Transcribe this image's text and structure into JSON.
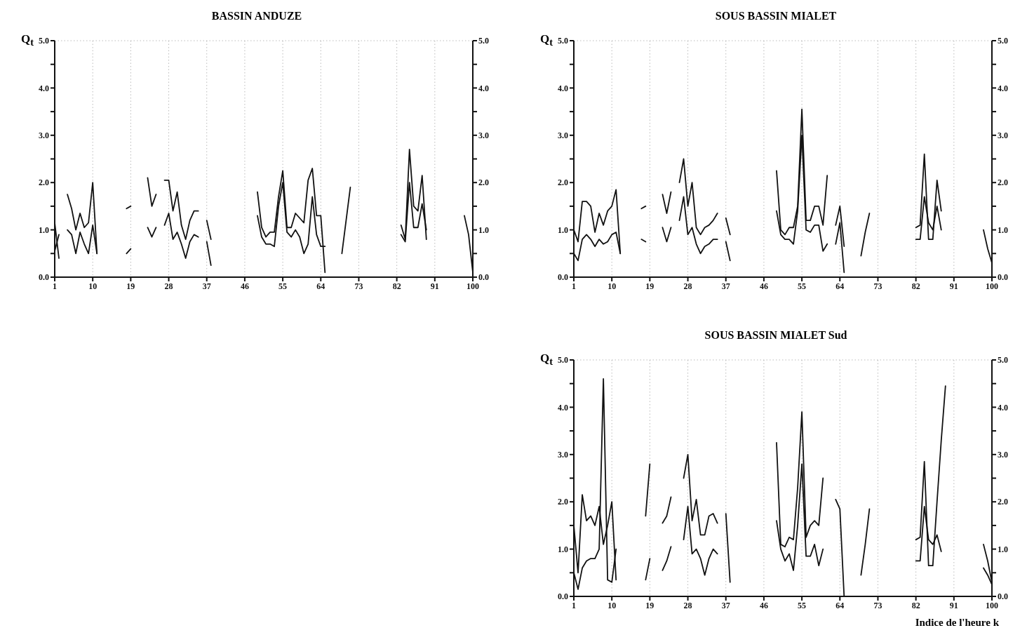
{
  "chart_data": [
    {
      "type": "line",
      "title": "BASSIN ANDUZE",
      "ylabel": "Q$_{t}$",
      "line_style": "solid",
      "marker": "none",
      "grid": true,
      "xlim": [
        1,
        100
      ],
      "xticks": [
        1,
        10,
        19,
        28,
        37,
        46,
        55,
        64,
        73,
        82,
        91,
        100
      ],
      "ylim": [
        0,
        5
      ],
      "yticks": [
        {
          "value": 0,
          "label": "0.0"
        },
        {
          "value": 0.5,
          "label": null
        },
        {
          "value": 1,
          "label": "1.0"
        },
        {
          "value": 1.5,
          "label": null
        },
        {
          "value": 2,
          "label": "2.0"
        },
        {
          "value": 2.5,
          "label": null
        },
        {
          "value": 3,
          "label": "3.0"
        },
        {
          "value": 3.5,
          "label": null
        },
        {
          "value": 4,
          "label": "4.0"
        },
        {
          "value": 4.5,
          "label": null
        },
        {
          "value": 5,
          "label": "5.0"
        }
      ],
      "y2lim": [
        0,
        5
      ],
      "y2ticks": [
        {
          "value": 0,
          "label": "0.0"
        },
        {
          "value": 0.5,
          "label": null
        },
        {
          "value": 1,
          "label": "1.0"
        },
        {
          "value": 1.5,
          "label": null
        },
        {
          "value": 2,
          "label": "2.0"
        },
        {
          "value": 2.5,
          "label": null
        },
        {
          "value": 3,
          "label": "3.0"
        },
        {
          "value": 3.5,
          "label": null
        },
        {
          "value": 4,
          "label": "4.0"
        },
        {
          "value": 4.5,
          "label": null
        },
        {
          "value": 5,
          "label": "5.0"
        }
      ],
      "x": [
        1,
        2,
        3,
        4,
        5,
        6,
        7,
        8,
        9,
        10,
        11,
        15,
        18,
        19,
        21,
        23,
        24,
        25,
        26,
        27,
        28,
        29,
        30,
        31,
        32,
        33,
        34,
        35,
        36,
        37,
        38,
        45,
        49,
        50,
        51,
        52,
        53,
        54,
        55,
        56,
        57,
        58,
        59,
        60,
        61,
        62,
        63,
        64,
        65,
        67,
        69,
        70,
        71,
        80,
        83,
        84,
        85,
        86,
        87,
        88,
        89,
        95,
        98,
        99,
        100
      ],
      "series": [
        {
          "color": "#111111",
          "values": [
            1.15,
            0.4,
            null,
            1.75,
            1.45,
            1.0,
            1.35,
            1.05,
            1.15,
            2.0,
            0.5,
            null,
            1.45,
            1.5,
            null,
            2.1,
            1.5,
            1.75,
            null,
            2.05,
            2.05,
            1.4,
            1.8,
            1.1,
            0.8,
            1.2,
            1.4,
            1.4,
            null,
            1.2,
            0.8,
            null,
            1.8,
            1.05,
            0.85,
            0.95,
            0.95,
            1.7,
            2.25,
            1.05,
            1.05,
            1.35,
            1.25,
            1.15,
            2.05,
            2.3,
            1.3,
            1.3,
            0.1,
            null,
            0.5,
            1.2,
            1.9,
            null,
            1.1,
            0.8,
            2.7,
            1.5,
            1.4,
            2.15,
            0.8,
            null,
            1.3,
            0.9,
            0.1
          ]
        },
        {
          "color": "#111111",
          "values": [
            0.55,
            0.9,
            null,
            1.0,
            0.9,
            0.5,
            0.95,
            0.7,
            0.5,
            1.1,
            0.5,
            null,
            0.5,
            0.6,
            null,
            1.05,
            0.85,
            1.05,
            null,
            1.1,
            1.35,
            0.8,
            0.95,
            0.7,
            0.4,
            0.75,
            0.9,
            0.85,
            null,
            0.75,
            0.25,
            null,
            1.3,
            0.85,
            0.7,
            0.7,
            0.65,
            1.5,
            2.0,
            0.95,
            0.85,
            1.0,
            0.85,
            0.5,
            0.7,
            1.7,
            0.9,
            0.65,
            0.65,
            null,
            null,
            null,
            null,
            null,
            0.9,
            0.75,
            2.0,
            1.05,
            1.05,
            1.55,
            1.0,
            null,
            null,
            null,
            null
          ]
        }
      ]
    },
    {
      "type": "line",
      "title": "SOUS BASSIN MIALET",
      "ylabel": "Q$_{t}$",
      "line_style": "solid",
      "marker": "none",
      "grid": true,
      "xlim": [
        1,
        100
      ],
      "xticks": [
        1,
        10,
        19,
        28,
        37,
        46,
        55,
        64,
        73,
        82,
        91,
        100
      ],
      "ylim": [
        0,
        5
      ],
      "yticks": [
        {
          "value": 0,
          "label": "0.0"
        },
        {
          "value": 0.5,
          "label": null
        },
        {
          "value": 1,
          "label": "1.0"
        },
        {
          "value": 1.5,
          "label": null
        },
        {
          "value": 2,
          "label": "2.0"
        },
        {
          "value": 2.5,
          "label": null
        },
        {
          "value": 3,
          "label": "3.0"
        },
        {
          "value": 3.5,
          "label": null
        },
        {
          "value": 4,
          "label": "4.0"
        },
        {
          "value": 4.5,
          "label": null
        },
        {
          "value": 5,
          "label": "5.0"
        }
      ],
      "y2lim": [
        0,
        5
      ],
      "y2ticks": [
        {
          "value": 0,
          "label": "0.0"
        },
        {
          "value": 0.5,
          "label": null
        },
        {
          "value": 1,
          "label": "1.0"
        },
        {
          "value": 1.5,
          "label": null
        },
        {
          "value": 2,
          "label": "2.0"
        },
        {
          "value": 2.5,
          "label": null
        },
        {
          "value": 3,
          "label": "3.0"
        },
        {
          "value": 3.5,
          "label": null
        },
        {
          "value": 4,
          "label": "4.0"
        },
        {
          "value": 4.5,
          "label": null
        },
        {
          "value": 5,
          "label": "5.0"
        }
      ],
      "x": [
        1,
        2,
        3,
        4,
        5,
        6,
        7,
        8,
        9,
        10,
        11,
        12,
        14,
        17,
        18,
        20,
        22,
        23,
        24,
        25,
        26,
        27,
        28,
        29,
        30,
        31,
        32,
        33,
        34,
        35,
        36,
        37,
        38,
        45,
        49,
        50,
        51,
        52,
        53,
        54,
        55,
        56,
        57,
        58,
        59,
        60,
        61,
        62,
        63,
        64,
        65,
        67,
        69,
        70,
        71,
        78,
        82,
        83,
        84,
        85,
        86,
        87,
        88,
        94,
        98,
        99,
        100
      ],
      "series": [
        {
          "color": "#111111",
          "values": [
            1.0,
            0.75,
            1.6,
            1.6,
            1.5,
            0.95,
            1.35,
            1.1,
            1.4,
            1.5,
            1.85,
            0.5,
            null,
            1.45,
            1.5,
            null,
            1.75,
            1.35,
            1.8,
            null,
            2.0,
            2.5,
            1.5,
            2.0,
            1.05,
            0.9,
            1.05,
            1.1,
            1.2,
            1.35,
            null,
            1.25,
            0.9,
            null,
            2.25,
            1.0,
            0.9,
            1.05,
            1.05,
            1.5,
            3.55,
            1.2,
            1.2,
            1.5,
            1.5,
            1.1,
            2.15,
            null,
            1.1,
            1.5,
            0.65,
            null,
            0.45,
            0.95,
            1.35,
            null,
            1.05,
            1.1,
            2.6,
            0.8,
            0.8,
            2.05,
            1.4,
            null,
            1.0,
            0.6,
            0.3
          ]
        },
        {
          "color": "#111111",
          "values": [
            0.5,
            0.35,
            0.8,
            0.9,
            0.8,
            0.65,
            0.8,
            0.7,
            0.75,
            0.9,
            0.95,
            0.5,
            null,
            0.8,
            0.75,
            null,
            1.05,
            0.75,
            1.05,
            null,
            1.2,
            1.7,
            0.9,
            1.05,
            0.7,
            0.5,
            0.65,
            0.7,
            0.8,
            0.8,
            null,
            0.75,
            0.35,
            null,
            1.4,
            0.9,
            0.8,
            0.8,
            0.7,
            1.4,
            3.0,
            1.0,
            0.95,
            1.1,
            1.1,
            0.55,
            0.7,
            null,
            0.7,
            1.15,
            0.1,
            null,
            null,
            null,
            null,
            null,
            0.8,
            0.8,
            1.7,
            1.15,
            1.0,
            1.5,
            1.0,
            null,
            null,
            null,
            null
          ]
        }
      ]
    },
    {
      "type": "line",
      "title": "SOUS BASSIN MIALET Sud",
      "ylabel": "Q$_{t}$",
      "xlabel": "Indice de l'heure k",
      "line_style": "solid",
      "marker": "none",
      "grid": true,
      "xlim": [
        1,
        100
      ],
      "xticks": [
        1,
        10,
        19,
        28,
        37,
        46,
        55,
        64,
        73,
        82,
        91,
        100
      ],
      "ylim": [
        0,
        5
      ],
      "yticks": [
        {
          "value": 0,
          "label": "0.0"
        },
        {
          "value": 0.5,
          "label": null
        },
        {
          "value": 1,
          "label": "1.0"
        },
        {
          "value": 1.5,
          "label": null
        },
        {
          "value": 2,
          "label": "2.0"
        },
        {
          "value": 2.5,
          "label": null
        },
        {
          "value": 3,
          "label": "3.0"
        },
        {
          "value": 3.5,
          "label": null
        },
        {
          "value": 4,
          "label": "4.0"
        },
        {
          "value": 4.5,
          "label": null
        },
        {
          "value": 5,
          "label": "5.0"
        }
      ],
      "y2lim": [
        0,
        5
      ],
      "y2ticks": [
        {
          "value": 0,
          "label": "0.0"
        },
        {
          "value": 0.5,
          "label": null
        },
        {
          "value": 1,
          "label": "1.0"
        },
        {
          "value": 1.5,
          "label": null
        },
        {
          "value": 2,
          "label": "2.0"
        },
        {
          "value": 2.5,
          "label": null
        },
        {
          "value": 3,
          "label": "3.0"
        },
        {
          "value": 3.5,
          "label": null
        },
        {
          "value": 4,
          "label": "4.0"
        },
        {
          "value": 4.5,
          "label": null
        },
        {
          "value": 5,
          "label": "5.0"
        }
      ],
      "x": [
        1,
        2,
        3,
        4,
        5,
        6,
        7,
        8,
        9,
        10,
        11,
        15,
        18,
        19,
        20,
        22,
        23,
        24,
        25,
        27,
        28,
        29,
        30,
        31,
        32,
        33,
        34,
        35,
        36,
        37,
        38,
        45,
        49,
        50,
        51,
        52,
        53,
        54,
        55,
        56,
        57,
        58,
        59,
        60,
        62,
        63,
        64,
        65,
        67,
        69,
        70,
        71,
        78,
        82,
        83,
        84,
        85,
        86,
        87,
        88,
        89,
        95,
        98,
        99,
        100
      ],
      "series": [
        {
          "color": "#111111",
          "values": [
            1.5,
            0.5,
            2.15,
            1.6,
            1.7,
            1.5,
            1.9,
            1.1,
            1.5,
            2.0,
            0.35,
            null,
            1.7,
            2.8,
            null,
            1.55,
            1.7,
            2.1,
            null,
            2.5,
            3.0,
            1.6,
            2.05,
            1.3,
            1.3,
            1.7,
            1.75,
            1.55,
            null,
            1.75,
            0.3,
            null,
            3.25,
            1.1,
            1.05,
            1.25,
            1.2,
            2.3,
            3.9,
            1.25,
            1.5,
            1.6,
            1.5,
            2.5,
            null,
            2.05,
            1.85,
            0.0,
            null,
            0.45,
            1.1,
            1.85,
            null,
            1.2,
            1.25,
            2.85,
            0.65,
            0.65,
            2.0,
            3.3,
            4.45,
            null,
            1.1,
            0.75,
            0.3
          ]
        },
        {
          "color": "#111111",
          "values": [
            0.5,
            0.15,
            0.6,
            0.75,
            0.8,
            0.8,
            1.0,
            4.6,
            0.35,
            0.3,
            1.0,
            null,
            0.35,
            0.8,
            null,
            0.55,
            0.75,
            1.05,
            null,
            1.2,
            1.9,
            0.9,
            1.0,
            0.8,
            0.45,
            0.8,
            1.0,
            0.9,
            null,
            null,
            null,
            null,
            1.6,
            1.0,
            0.75,
            0.9,
            0.55,
            1.5,
            2.8,
            0.85,
            0.85,
            1.1,
            0.65,
            1.0,
            null,
            null,
            null,
            null,
            null,
            null,
            null,
            null,
            null,
            0.75,
            0.75,
            1.9,
            1.2,
            1.1,
            1.3,
            0.95,
            null,
            null,
            0.6,
            0.45,
            0.25
          ]
        }
      ]
    }
  ]
}
